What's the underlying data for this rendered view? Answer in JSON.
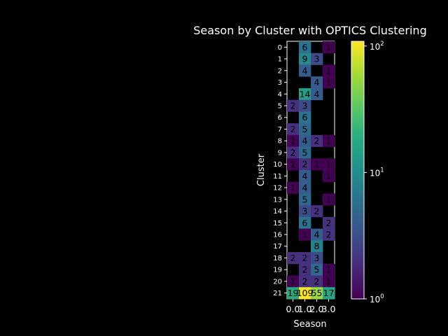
{
  "chart_data": {
    "type": "heatmap",
    "title": "Season by Cluster with OPTICS Clustering",
    "xlabel": "Season",
    "ylabel": "Cluster",
    "x_categories": [
      "0.0",
      "1.0",
      "2.0",
      "3.0"
    ],
    "y_categories": [
      "0",
      "1",
      "2",
      "3",
      "4",
      "5",
      "6",
      "7",
      "8",
      "9",
      "10",
      "11",
      "12",
      "13",
      "14",
      "15",
      "16",
      "17",
      "18",
      "19",
      "20",
      "21"
    ],
    "values": [
      [
        null,
        6,
        null,
        1
      ],
      [
        null,
        9,
        3,
        null
      ],
      [
        null,
        4,
        null,
        1
      ],
      [
        null,
        null,
        4,
        1
      ],
      [
        null,
        14,
        4,
        null
      ],
      [
        2,
        3,
        null,
        null
      ],
      [
        null,
        6,
        null,
        null
      ],
      [
        2,
        5,
        null,
        null
      ],
      [
        1,
        4,
        2,
        1
      ],
      [
        2,
        5,
        null,
        null
      ],
      [
        1,
        2,
        1,
        1
      ],
      [
        null,
        4,
        null,
        1
      ],
      [
        1,
        4,
        null,
        null
      ],
      [
        null,
        5,
        null,
        1
      ],
      [
        null,
        3,
        2,
        null
      ],
      [
        null,
        6,
        null,
        2
      ],
      [
        null,
        1,
        4,
        2
      ],
      [
        null,
        null,
        8,
        null
      ],
      [
        2,
        2,
        3,
        null
      ],
      [
        null,
        2,
        5,
        1
      ],
      [
        1,
        2,
        2,
        1
      ],
      [
        19,
        109,
        55,
        17
      ]
    ],
    "colorbar": {
      "scale": "log",
      "range": [
        1,
        109
      ],
      "ticks": [
        {
          "value": 1,
          "base": "10",
          "exp": "0"
        },
        {
          "value": 10,
          "base": "10",
          "exp": "1"
        },
        {
          "value": 100,
          "base": "10",
          "exp": "2"
        }
      ]
    },
    "colormap": "viridis",
    "colors": {
      "background": "#000000",
      "text": "#ffffff",
      "empty_cell": "#000000"
    },
    "grid": false
  }
}
